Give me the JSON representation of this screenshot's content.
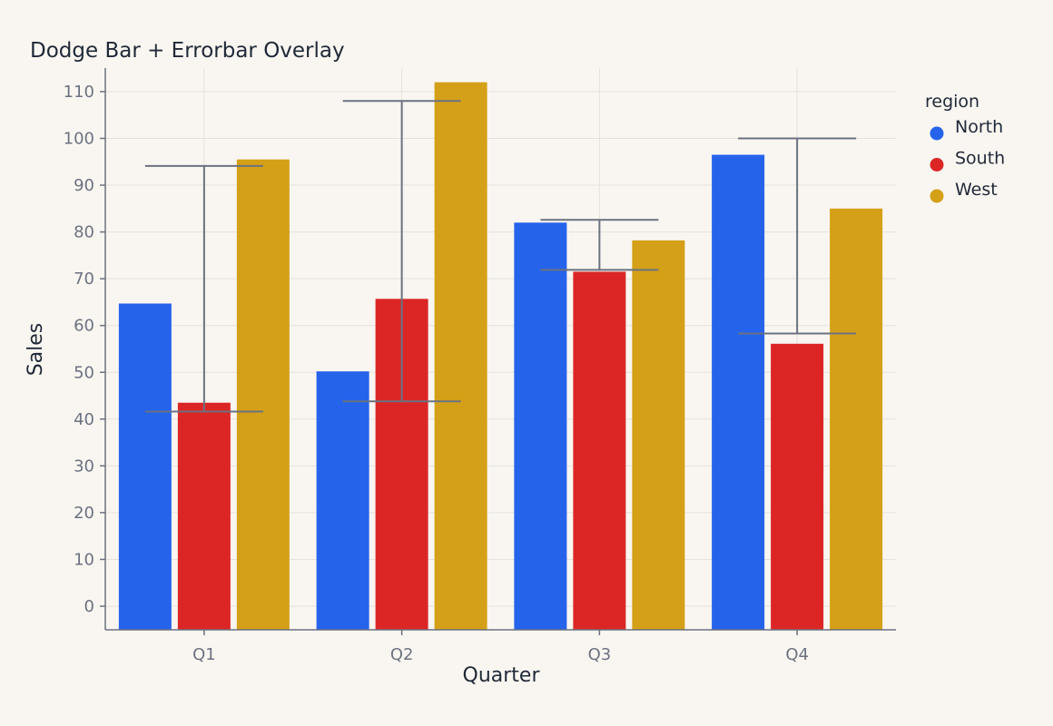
{
  "chart_data": {
    "type": "bar",
    "title": "Dodge Bar + Errorbar Overlay",
    "xlabel": "Quarter",
    "ylabel": "Sales",
    "categories": [
      "Q1",
      "Q2",
      "Q3",
      "Q4"
    ],
    "ylim": [
      -5,
      115
    ],
    "yticks": [
      0,
      10,
      20,
      30,
      40,
      50,
      60,
      70,
      80,
      90,
      100,
      110
    ],
    "grid": true,
    "legend": {
      "title": "region",
      "position": "right"
    },
    "series": [
      {
        "name": "North",
        "color": "#2563eb",
        "values": [
          64.7,
          50.2,
          82.0,
          96.5
        ]
      },
      {
        "name": "South",
        "color": "#dc2626",
        "values": [
          43.5,
          65.7,
          71.5,
          56.1
        ]
      },
      {
        "name": "West",
        "color": "#d4a017",
        "values": [
          95.5,
          112.0,
          78.2,
          85.0
        ]
      }
    ],
    "errorbars": {
      "color": "#6b7280",
      "items": [
        {
          "category": "Q1",
          "low": 41.6,
          "high": 94.1
        },
        {
          "category": "Q2",
          "low": 43.8,
          "high": 108.0
        },
        {
          "category": "Q3",
          "low": 71.9,
          "high": 82.6
        },
        {
          "category": "Q4",
          "low": 58.3,
          "high": 100.0
        }
      ]
    }
  }
}
